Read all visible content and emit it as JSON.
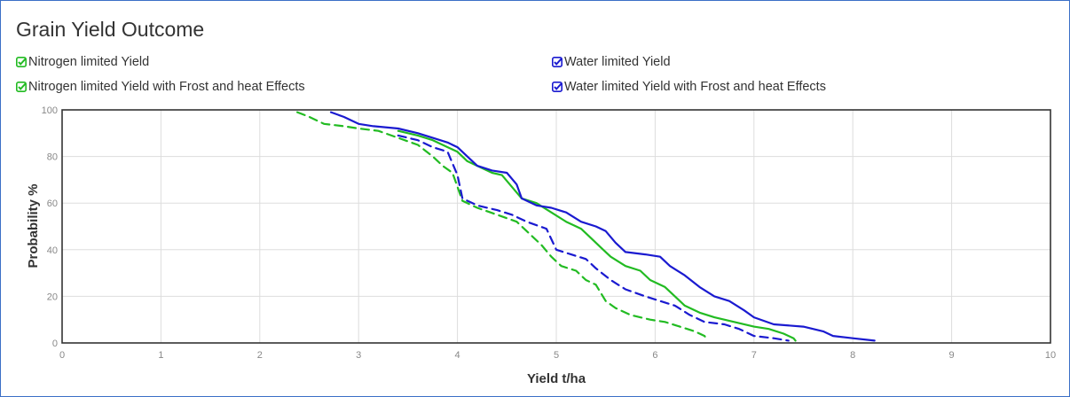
{
  "chart_data": {
    "type": "line",
    "title": "Grain Yield Outcome",
    "xlabel": "Yield t/ha",
    "ylabel": "Probability %",
    "xlim": [
      0,
      10
    ],
    "ylim": [
      0,
      100
    ],
    "xticks": [
      "0",
      "1",
      "2",
      "3",
      "4",
      "5",
      "6",
      "7",
      "8",
      "9",
      "10"
    ],
    "yticks": [
      "0",
      "20",
      "40",
      "60",
      "80",
      "100"
    ],
    "grid": true,
    "legend_position": "top",
    "series": [
      {
        "name": "Nitrogen limited Yield",
        "color": "#22bb22",
        "dash": false,
        "points": [
          [
            3.4,
            91
          ],
          [
            3.6,
            89
          ],
          [
            3.75,
            87
          ],
          [
            3.9,
            84
          ],
          [
            4.0,
            82
          ],
          [
            4.1,
            78
          ],
          [
            4.2,
            76
          ],
          [
            4.35,
            73
          ],
          [
            4.45,
            72
          ],
          [
            4.55,
            67
          ],
          [
            4.65,
            62
          ],
          [
            4.8,
            60
          ],
          [
            4.95,
            56
          ],
          [
            5.1,
            52
          ],
          [
            5.25,
            49
          ],
          [
            5.35,
            45
          ],
          [
            5.45,
            41
          ],
          [
            5.55,
            37
          ],
          [
            5.7,
            33
          ],
          [
            5.85,
            31
          ],
          [
            5.95,
            27
          ],
          [
            6.1,
            24
          ],
          [
            6.2,
            20
          ],
          [
            6.3,
            16
          ],
          [
            6.45,
            13
          ],
          [
            6.6,
            11
          ],
          [
            6.8,
            9
          ],
          [
            7.0,
            7
          ],
          [
            7.15,
            6
          ],
          [
            7.3,
            4
          ],
          [
            7.4,
            2
          ],
          [
            7.42,
            1
          ]
        ]
      },
      {
        "name": "Water limited Yield",
        "color": "#1a1ad0",
        "dash": false,
        "points": [
          [
            2.72,
            99
          ],
          [
            2.85,
            97
          ],
          [
            3.0,
            94
          ],
          [
            3.15,
            93
          ],
          [
            3.4,
            92
          ],
          [
            3.6,
            90
          ],
          [
            3.75,
            88
          ],
          [
            3.9,
            86
          ],
          [
            4.0,
            84
          ],
          [
            4.1,
            80
          ],
          [
            4.2,
            76
          ],
          [
            4.35,
            74
          ],
          [
            4.5,
            73
          ],
          [
            4.6,
            68
          ],
          [
            4.65,
            62
          ],
          [
            4.8,
            59
          ],
          [
            4.95,
            58
          ],
          [
            5.1,
            56
          ],
          [
            5.25,
            52
          ],
          [
            5.4,
            50
          ],
          [
            5.5,
            48
          ],
          [
            5.6,
            43
          ],
          [
            5.7,
            39
          ],
          [
            5.9,
            38
          ],
          [
            6.05,
            37
          ],
          [
            6.15,
            33
          ],
          [
            6.3,
            29
          ],
          [
            6.45,
            24
          ],
          [
            6.6,
            20
          ],
          [
            6.75,
            18
          ],
          [
            6.9,
            14
          ],
          [
            7.0,
            11
          ],
          [
            7.2,
            8
          ],
          [
            7.5,
            7
          ],
          [
            7.7,
            5
          ],
          [
            7.8,
            3
          ],
          [
            8.0,
            2
          ],
          [
            8.22,
            1
          ]
        ]
      },
      {
        "name": "Nitrogen limited Yield with Frost and heat Effects",
        "color": "#22bb22",
        "dash": true,
        "points": [
          [
            2.38,
            99
          ],
          [
            2.5,
            97
          ],
          [
            2.65,
            94
          ],
          [
            2.85,
            93
          ],
          [
            3.0,
            92
          ],
          [
            3.2,
            91
          ],
          [
            3.4,
            88
          ],
          [
            3.6,
            85
          ],
          [
            3.75,
            80
          ],
          [
            3.85,
            76
          ],
          [
            3.95,
            73
          ],
          [
            4.0,
            67
          ],
          [
            4.05,
            61
          ],
          [
            4.2,
            58
          ],
          [
            4.4,
            55
          ],
          [
            4.6,
            52
          ],
          [
            4.75,
            46
          ],
          [
            4.85,
            42
          ],
          [
            4.95,
            37
          ],
          [
            5.05,
            33
          ],
          [
            5.2,
            31
          ],
          [
            5.3,
            27
          ],
          [
            5.4,
            25
          ],
          [
            5.5,
            18
          ],
          [
            5.6,
            15
          ],
          [
            5.75,
            12
          ],
          [
            5.95,
            10
          ],
          [
            6.1,
            9
          ],
          [
            6.25,
            7
          ],
          [
            6.4,
            5
          ],
          [
            6.5,
            3
          ],
          [
            6.53,
            1
          ]
        ]
      },
      {
        "name": "Water limited Yield with Frost and heat Effects",
        "color": "#1a1ad0",
        "dash": true,
        "points": [
          [
            3.4,
            89
          ],
          [
            3.6,
            87
          ],
          [
            3.75,
            84
          ],
          [
            3.9,
            82
          ],
          [
            4.0,
            72
          ],
          [
            4.05,
            62
          ],
          [
            4.2,
            59
          ],
          [
            4.4,
            57
          ],
          [
            4.55,
            55
          ],
          [
            4.7,
            52
          ],
          [
            4.9,
            49
          ],
          [
            5.0,
            40
          ],
          [
            5.15,
            38
          ],
          [
            5.3,
            36
          ],
          [
            5.4,
            32
          ],
          [
            5.55,
            27
          ],
          [
            5.7,
            23
          ],
          [
            5.9,
            20
          ],
          [
            6.05,
            18
          ],
          [
            6.2,
            16
          ],
          [
            6.35,
            12
          ],
          [
            6.5,
            9
          ],
          [
            6.7,
            8
          ],
          [
            6.85,
            6
          ],
          [
            7.0,
            3
          ],
          [
            7.2,
            2
          ],
          [
            7.35,
            1
          ]
        ]
      }
    ]
  },
  "legend": {
    "items": [
      {
        "label": "Nitrogen limited Yield",
        "color": "#22bb22",
        "checked": true
      },
      {
        "label": "Water limited Yield",
        "color": "#1a1ad0",
        "checked": true
      },
      {
        "label": "Nitrogen limited Yield with Frost and heat Effects",
        "color": "#22bb22",
        "checked": true
      },
      {
        "label": "Water limited Yield with Frost and heat Effects",
        "color": "#1a1ad0",
        "checked": true
      }
    ]
  }
}
